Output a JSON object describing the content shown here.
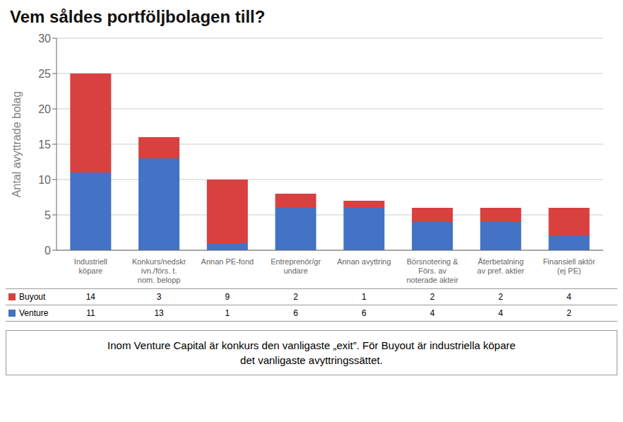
{
  "chart_data": {
    "type": "bar",
    "title": "Vem såldes portföljbolagen till?",
    "categories": [
      "Industriell\nköpare",
      "Konkurs/nedskr\nivn./förs. t.\nnom. belopp",
      "Annan PE-fond",
      "Entreprenör/gr\nundare",
      "Annan avyttring",
      "Börsnotering &\nFörs. av\nnoterade akteir",
      "Återbetalning\nav pref. aktier",
      "Finansiell aktör\n(ej PE)"
    ],
    "series": [
      {
        "name": "Venture",
        "color": "#4472c4",
        "values": [
          11,
          13,
          1,
          6,
          6,
          4,
          4,
          2
        ]
      },
      {
        "name": "Buyout",
        "color": "#d94040",
        "values": [
          14,
          3,
          9,
          2,
          1,
          2,
          2,
          4
        ]
      }
    ],
    "stacked": true,
    "ylabel": "Antal avyttrade bolag",
    "ylim": [
      0,
      30
    ],
    "yticks": [
      0,
      5,
      10,
      15,
      20,
      25,
      30
    ],
    "grid": true,
    "annotations": [
      "Inom Venture Capital är konkurs den vanligaste „exit”. För Buyout är industriella köpare\ndet vanligaste avyttringssättet."
    ]
  }
}
